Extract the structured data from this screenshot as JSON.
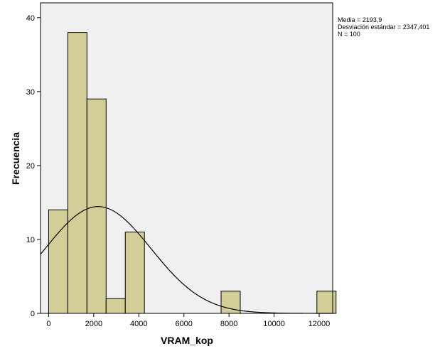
{
  "chart_data": {
    "type": "histogram",
    "xlabel": "VRAM_kop",
    "ylabel": "Frecuencia",
    "xlim": [
      -360,
      12600
    ],
    "ylim": [
      0,
      42
    ],
    "x_ticks": [
      0,
      2000,
      4000,
      6000,
      8000,
      10000,
      12000
    ],
    "y_ticks": [
      0,
      10,
      20,
      30,
      40
    ],
    "bin_width": 850,
    "bins": [
      {
        "start": 0,
        "end": 850,
        "count": 14
      },
      {
        "start": 850,
        "end": 1700,
        "count": 38
      },
      {
        "start": 1700,
        "end": 2550,
        "count": 29
      },
      {
        "start": 2550,
        "end": 3400,
        "count": 2
      },
      {
        "start": 3400,
        "end": 4250,
        "count": 11
      },
      {
        "start": 7650,
        "end": 8500,
        "count": 3
      },
      {
        "start": 11900,
        "end": 12750,
        "count": 3
      }
    ],
    "normal_curve": {
      "mean": 2193.9,
      "sd": 2347.401,
      "n": 100
    },
    "stats_text": [
      "Media = 2193,9",
      "Desviación estándar = 2347,401",
      "N = 100"
    ],
    "colors": {
      "plot_bg": "#f0f0f0",
      "bar_fill": "#d3ce97",
      "bar_stroke": "#000000",
      "curve": "#000000"
    }
  }
}
